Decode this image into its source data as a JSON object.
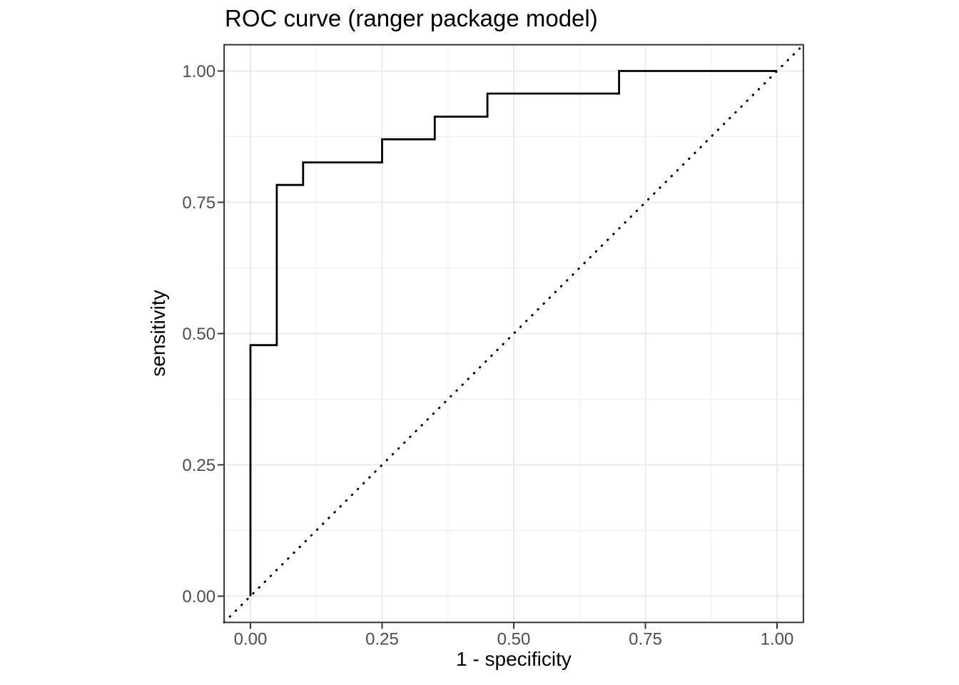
{
  "chart_data": {
    "type": "line",
    "subtype": "roc-step-curve",
    "title": "ROC curve (ranger package model)",
    "xlabel": "1 - specificity",
    "ylabel": "sensitivity",
    "xlim": [
      0,
      1
    ],
    "ylim": [
      0,
      1
    ],
    "axis_expansion": 0.05,
    "grid": "major and minor gridlines, light grey on white panel, dark grey panel border (ggplot2 theme_bw style)",
    "legend": "none",
    "x_ticks": {
      "values": [
        0,
        0.25,
        0.5,
        0.75,
        1
      ],
      "labels": [
        "0.00",
        "0.25",
        "0.50",
        "0.75",
        "1.00"
      ]
    },
    "y_ticks": {
      "values": [
        0,
        0.25,
        0.5,
        0.75,
        1
      ],
      "labels": [
        "0.00",
        "0.25",
        "0.50",
        "0.75",
        "1.00"
      ]
    },
    "series": [
      {
        "name": "ROC step curve",
        "type": "step",
        "linetype": "solid",
        "color": "#000000",
        "points": [
          [
            0.0,
            0.0
          ],
          [
            0.0,
            0.478
          ],
          [
            0.05,
            0.478
          ],
          [
            0.05,
            0.783
          ],
          [
            0.1,
            0.783
          ],
          [
            0.1,
            0.826
          ],
          [
            0.25,
            0.826
          ],
          [
            0.25,
            0.87
          ],
          [
            0.35,
            0.87
          ],
          [
            0.35,
            0.913
          ],
          [
            0.45,
            0.913
          ],
          [
            0.45,
            0.957
          ],
          [
            0.7,
            0.957
          ],
          [
            0.7,
            1.0
          ],
          [
            1.0,
            1.0
          ]
        ]
      },
      {
        "name": "chance reference diagonal",
        "type": "reference-line",
        "linetype": "dotted",
        "color": "#000000",
        "points": [
          [
            0,
            0
          ],
          [
            1,
            1
          ]
        ]
      }
    ],
    "colors": {
      "background": "#ffffff",
      "panel_background": "#ffffff",
      "grid_major": "#ebebeb",
      "grid_minor": "#efefef",
      "panel_border": "#333333",
      "tick_mark": "#333333",
      "tick_label": "#4d4d4d",
      "text": "#000000",
      "curve": "#000000"
    }
  }
}
